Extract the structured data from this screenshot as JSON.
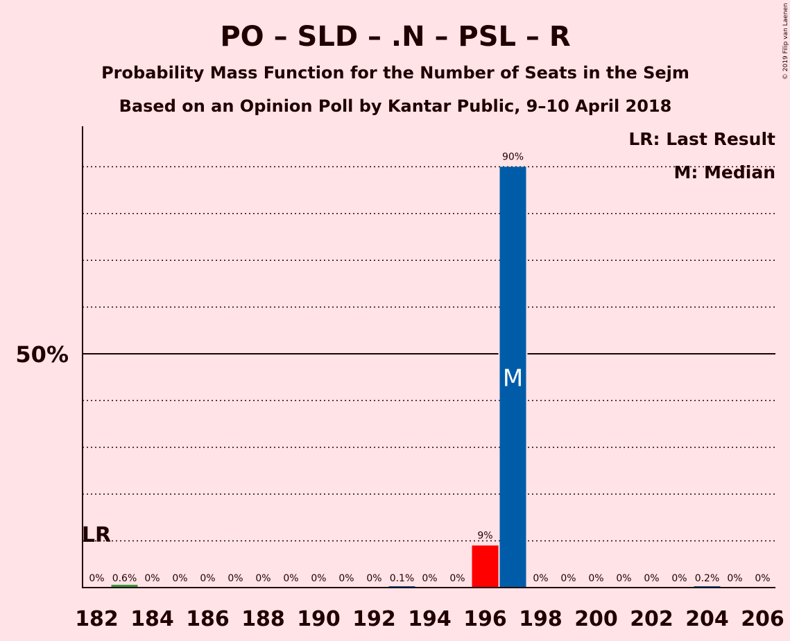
{
  "chart_data": {
    "type": "bar",
    "title": "PO – SLD – .N – PSL – R",
    "subtitle_1": "Probability Mass Function for the Number of Seats in the Sejm",
    "subtitle_2": "Based on an Opinion Poll by Kantar Public, 9–10 April 2018",
    "copyright": "© 2019 Filip van Laenen",
    "legend": {
      "last_result": "LR: Last Result",
      "median": "M: Median"
    },
    "ylim": [
      0,
      93
    ],
    "y_gridlines": [
      10,
      20,
      30,
      40,
      60,
      70,
      80,
      90
    ],
    "y_major_line": 50,
    "y_tick_label": "50%",
    "x_tick_labels": [
      "182",
      "184",
      "186",
      "188",
      "190",
      "192",
      "194",
      "196",
      "198",
      "200",
      "202",
      "204",
      "206"
    ],
    "x": [
      182,
      183,
      184,
      185,
      186,
      187,
      188,
      189,
      190,
      191,
      192,
      193,
      194,
      195,
      196,
      197,
      198,
      199,
      200,
      201,
      202,
      203,
      204,
      205,
      206
    ],
    "values": [
      0,
      0.6,
      0,
      0,
      0,
      0,
      0,
      0,
      0,
      0,
      0,
      0.1,
      0,
      0,
      9,
      90,
      0,
      0,
      0,
      0,
      0,
      0,
      0.2,
      0,
      0
    ],
    "labels": [
      "0%",
      "0.6%",
      "0%",
      "0%",
      "0%",
      "0%",
      "0%",
      "0%",
      "0%",
      "0%",
      "0%",
      "0.1%",
      "0%",
      "0%",
      "9%",
      "90%",
      "0%",
      "0%",
      "0%",
      "0%",
      "0%",
      "0%",
      "0.2%",
      "0%",
      "0%"
    ],
    "bar_colors": {
      "183": "#3A9A3A",
      "196": "#FF0000",
      "197": "#005CA8"
    },
    "default_bar_color": "#005CA8",
    "last_result_seat": 182,
    "last_result_label": "LR",
    "median_seat": 197,
    "median_label": "M"
  }
}
